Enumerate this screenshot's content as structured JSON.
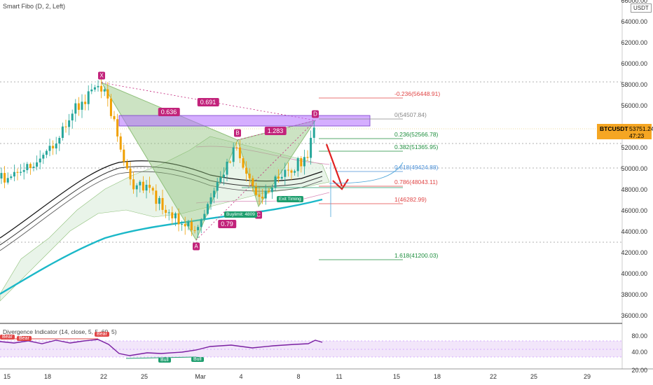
{
  "indicator_title": "Smart Fibo (D, 2, Left)",
  "currency_badge": "USDT",
  "symbol": "BTCUSDT",
  "last_price": "53751.24",
  "countdown": "47:23",
  "y_ticks": [
    "66000.00",
    "64000.00",
    "62000.00",
    "60000.00",
    "58000.00",
    "56000.00",
    "54000.00",
    "52000.00",
    "50000.00",
    "48000.00",
    "46000.00",
    "44000.00",
    "42000.00",
    "40000.00",
    "38000.00",
    "36000.00"
  ],
  "x_ticks": [
    "15",
    "18",
    "22",
    "25",
    "Mar",
    "4",
    "8",
    "11",
    "15",
    "18",
    "22",
    "25",
    "29"
  ],
  "pattern_points": {
    "x": "X",
    "a": "A",
    "b": "B",
    "c": "C",
    "d": "D"
  },
  "ratios": {
    "xa_ad": "0.636",
    "xd": "0.691",
    "bc": "0.79",
    "cd": "1.283"
  },
  "fib_levels": [
    {
      "label": "-0.236(56448.91)",
      "color": "#e04545"
    },
    {
      "label": "0(54507.84)",
      "color": "#888888"
    },
    {
      "label": "0.236(52566.78)",
      "color": "#1e8e3e"
    },
    {
      "label": "0.382(51365.95)",
      "color": "#1e8e3e"
    },
    {
      "label": "0.618(49424.88)",
      "color": "#4a90d9"
    },
    {
      "label": "0.786(48043.11)",
      "color": "#e04545"
    },
    {
      "label": "1(46282.99)",
      "color": "#e04545"
    },
    {
      "label": "1.618(41200.03)",
      "color": "#1e8e3e"
    }
  ],
  "tags": {
    "buylimit": "Buylimit: 4809",
    "exit": "Exit Timing"
  },
  "oscillator": {
    "title": "Divergence Indicator (14, close, 5, 5, 60, 5)",
    "y_ticks": [
      "80.00",
      "40.00",
      "20.00"
    ],
    "bear_labels": [
      "Bear",
      "Bear",
      "Bear"
    ],
    "bull_labels": [
      "Bull",
      "Bull"
    ]
  },
  "colors": {
    "harmonic": "#8fc07a",
    "zone": "#b26cff",
    "ma": "#1bb8c8",
    "accent": "#c2237b",
    "arrow": "#e02020",
    "up": "#26a69a",
    "down": "#f0a000"
  }
}
